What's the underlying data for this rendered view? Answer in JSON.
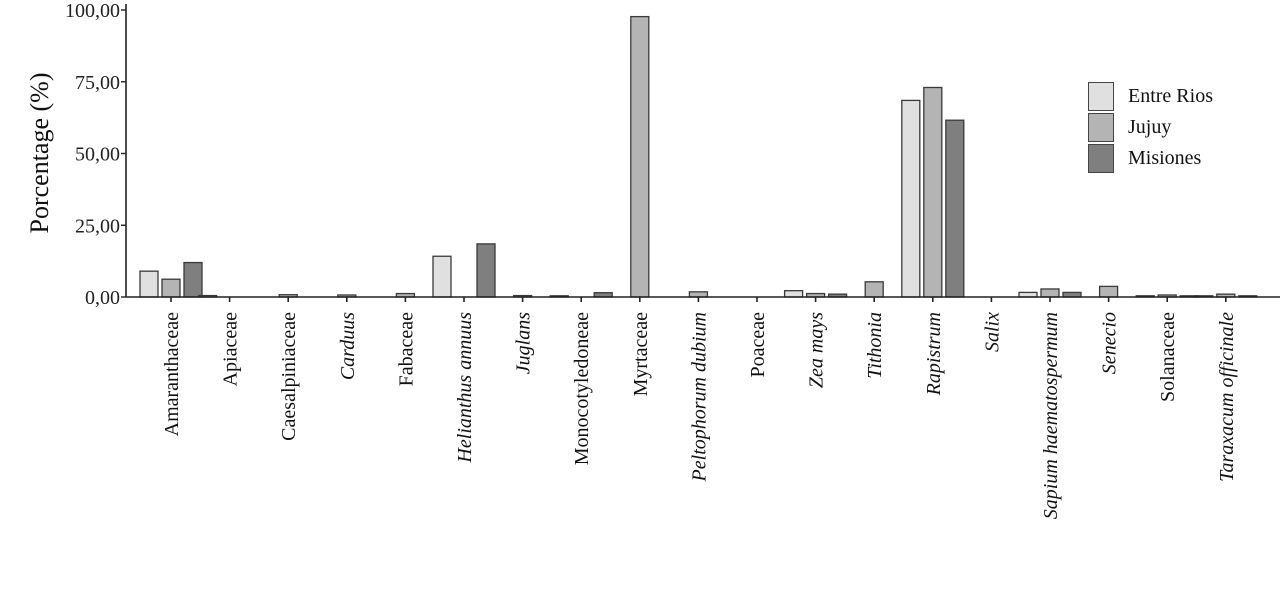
{
  "chart_data": {
    "type": "bar",
    "title": "",
    "xlabel": "",
    "ylabel": "Porcentage (%)",
    "ylim": [
      0,
      100
    ],
    "yticks": [
      "0,00",
      "25,00",
      "50,00",
      "75,00",
      "100,00"
    ],
    "grid": false,
    "legend_position": "top-right",
    "categories": [
      "Amaranthaceae",
      "Apiaceae",
      "Caesalpiniaceae",
      "Carduus",
      "Fabaceae",
      "Helianthus annuus",
      "Juglans",
      "Monocotyledoneae",
      "Myrtaceae",
      "Peltophorum dubium",
      "Poaceae",
      "Zea mays",
      "Tithonia",
      "Rapistrum",
      "Salix",
      "Sapium haematospermum",
      "Senecio",
      "Solanaceae",
      "Taraxacum officinale"
    ],
    "italic_categories": [
      "Carduus",
      "Helianthus annuus",
      "Juglans",
      "Peltophorum dubium",
      "Zea mays",
      "Tithonia",
      "Rapistrum",
      "Salix",
      "Sapium haematospermum",
      "Senecio",
      "Taraxacum officinale"
    ],
    "series": [
      {
        "name": "Entre Rios",
        "color": "#e0e0e0",
        "values": [
          9.0,
          0.5,
          0,
          0,
          0,
          14.2,
          0,
          0.4,
          0,
          0,
          0,
          2.2,
          0,
          68.5,
          0,
          1.6,
          0,
          0.4,
          0.4
        ]
      },
      {
        "name": "Jujuy",
        "color": "#b4b4b4",
        "values": [
          6.2,
          0,
          0.8,
          0.7,
          1.2,
          0,
          0.5,
          0,
          97.7,
          1.8,
          0,
          1.2,
          5.3,
          73.0,
          0,
          2.8,
          3.7,
          0.7,
          1.0
        ]
      },
      {
        "name": "Misiones",
        "color": "#7f7f7f",
        "values": [
          12.0,
          0,
          0,
          0,
          0,
          18.5,
          0,
          1.5,
          0,
          0,
          0,
          1.0,
          0,
          61.6,
          0,
          1.6,
          0,
          0.4,
          0.4
        ]
      }
    ]
  },
  "legend": {
    "items": [
      {
        "label": "Entre Rios",
        "color": "#e0e0e0"
      },
      {
        "label": "Jujuy",
        "color": "#b4b4b4"
      },
      {
        "label": "Misiones",
        "color": "#7f7f7f"
      }
    ]
  }
}
